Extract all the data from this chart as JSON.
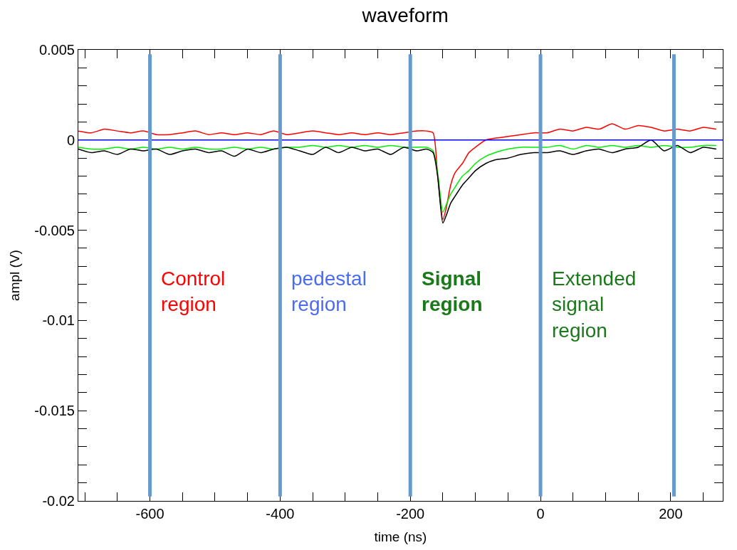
{
  "chart_data": {
    "type": "line",
    "title": "waveform",
    "xlabel": "time (ns)",
    "ylabel": "ampl (V)",
    "x": [
      -710,
      -690,
      -670,
      -650,
      -630,
      -610,
      -590,
      -570,
      -550,
      -530,
      -510,
      -490,
      -470,
      -450,
      -430,
      -410,
      -390,
      -370,
      -350,
      -330,
      -310,
      -290,
      -270,
      -250,
      -230,
      -210,
      -190,
      -175,
      -165,
      -158,
      -150,
      -145,
      -138,
      -131,
      -120,
      -110,
      -100,
      -84,
      -70,
      -50,
      -30,
      -10,
      10,
      30,
      50,
      70,
      90,
      110,
      130,
      150,
      170,
      190,
      210,
      230,
      250,
      270
    ],
    "series": [
      {
        "color": "#ff0000",
        "values": [
          0.0005,
          0.0004,
          0.0006,
          0.0005,
          0.0004,
          0.0005,
          0.0003,
          0.0003,
          0.0004,
          0.0005,
          0.0003,
          0.0004,
          0.0003,
          0.0004,
          0.0003,
          0.0005,
          0.0003,
          0.0004,
          0.0005,
          0.0004,
          0.0003,
          0.0004,
          0.0003,
          0.0004,
          0.0003,
          0.0004,
          0.0005,
          0.0005,
          0.0004,
          -0.002,
          -0.0044,
          -0.0038,
          -0.0025,
          -0.0018,
          -0.0013,
          -0.0007,
          -0.0004,
          0.0,
          0.0001,
          0.0002,
          0.0003,
          0.0004,
          0.0004,
          0.0006,
          0.0005,
          0.0007,
          0.0006,
          0.0009,
          0.0006,
          0.0008,
          0.0007,
          0.0005,
          0.0006,
          0.0005,
          0.0007,
          0.0006
        ]
      },
      {
        "color": "#00ee00",
        "values": [
          -0.0004,
          -0.0005,
          -0.0005,
          -0.0004,
          -0.0005,
          -0.0004,
          -0.0005,
          -0.0004,
          -0.0005,
          -0.0004,
          -0.0005,
          -0.0005,
          -0.0004,
          -0.0005,
          -0.0004,
          -0.0005,
          -0.0004,
          -0.0004,
          -0.0003,
          -0.0004,
          -0.0003,
          -0.0004,
          -0.0003,
          -0.0004,
          -0.0003,
          -0.0004,
          -0.0004,
          -0.0004,
          -0.0006,
          -0.0018,
          -0.004,
          -0.0036,
          -0.003,
          -0.0026,
          -0.002,
          -0.0017,
          -0.0013,
          -0.0009,
          -0.0007,
          -0.0005,
          -0.0004,
          -0.0004,
          -0.0004,
          -0.0003,
          -0.0005,
          -0.0003,
          -0.0004,
          -0.0003,
          -0.0004,
          -0.0003,
          -0.0004,
          -0.0003,
          -0.0004,
          -0.0004,
          -0.0003,
          -0.0003
        ]
      },
      {
        "color": "#000000",
        "values": [
          -0.0005,
          -0.0007,
          -0.0006,
          -0.0008,
          -0.0005,
          -0.0006,
          -0.0005,
          -0.0008,
          -0.0006,
          -0.0005,
          -0.0007,
          -0.0006,
          -0.0009,
          -0.0005,
          -0.0007,
          -0.0005,
          -0.0004,
          -0.0006,
          -0.0008,
          -0.0004,
          -0.0007,
          -0.0004,
          -0.0006,
          -0.0005,
          -0.0008,
          -0.0004,
          -0.0006,
          -0.0005,
          -0.0007,
          -0.002,
          -0.0046,
          -0.0042,
          -0.0035,
          -0.0031,
          -0.0025,
          -0.0021,
          -0.0017,
          -0.0013,
          -0.0011,
          -0.001,
          -0.0008,
          -0.0007,
          -0.0007,
          -0.0006,
          -0.0008,
          -0.0006,
          -0.0005,
          -0.0007,
          -0.0005,
          -0.0004,
          0.0,
          -0.0006,
          -0.0003,
          -0.0007,
          -0.0004,
          -0.0005
        ]
      }
    ],
    "xlim": [
      -710,
      280
    ],
    "xticks": [
      {
        "value": -700,
        "label": null
      },
      {
        "value": -650,
        "label": null
      },
      -600,
      {
        "value": -550,
        "label": null
      },
      {
        "value": -500,
        "label": null
      },
      {
        "value": -450,
        "label": null
      },
      -400,
      {
        "value": -350,
        "label": null
      },
      {
        "value": -300,
        "label": null
      },
      {
        "value": -250,
        "label": null
      },
      -200,
      {
        "value": -150,
        "label": null
      },
      {
        "value": -100,
        "label": null
      },
      {
        "value": -50,
        "label": null
      },
      0,
      {
        "value": 50,
        "label": null
      },
      {
        "value": 100,
        "label": null
      },
      {
        "value": 150,
        "label": null
      },
      200,
      {
        "value": 250,
        "label": null
      }
    ],
    "ylim": [
      -0.02,
      0.005
    ],
    "yticks": [
      0.005,
      {
        "value": 0.004,
        "label": null
      },
      {
        "value": 0.003,
        "label": null
      },
      {
        "value": 0.002,
        "label": null
      },
      {
        "value": 0.001,
        "label": null
      },
      0,
      {
        "value": -0.001,
        "label": null
      },
      {
        "value": -0.002,
        "label": null
      },
      {
        "value": -0.003,
        "label": null
      },
      {
        "value": -0.004,
        "label": null
      },
      -0.005,
      {
        "value": -0.006,
        "label": null
      },
      {
        "value": -0.007,
        "label": null
      },
      {
        "value": -0.008,
        "label": null
      },
      {
        "value": -0.009,
        "label": null
      },
      -0.01,
      {
        "value": -0.011,
        "label": null
      },
      {
        "value": -0.012,
        "label": null
      },
      {
        "value": -0.013,
        "label": null
      },
      {
        "value": -0.014,
        "label": null
      },
      -0.015,
      {
        "value": -0.016,
        "label": null
      },
      {
        "value": -0.017,
        "label": null
      },
      {
        "value": -0.018,
        "label": null
      },
      {
        "value": -0.019,
        "label": null
      },
      -0.02
    ],
    "ref_lines": [
      {
        "axis": "y",
        "value": 0,
        "color": "#0000ff"
      },
      {
        "axis": "x",
        "value": -600,
        "color": "#6699cc"
      },
      {
        "axis": "x",
        "value": -400,
        "color": "#6699cc"
      },
      {
        "axis": "x",
        "value": -200,
        "color": "#6699cc"
      },
      {
        "axis": "x",
        "value": 0,
        "color": "#6699cc"
      },
      {
        "axis": "x",
        "value": 205,
        "color": "#6699cc"
      }
    ],
    "annotations": [
      "Control\nregion",
      "pedestal\nregion",
      "Signal\nregion",
      "Extended\nsignal\nregion"
    ],
    "marker": "none",
    "line_style": "solid"
  }
}
